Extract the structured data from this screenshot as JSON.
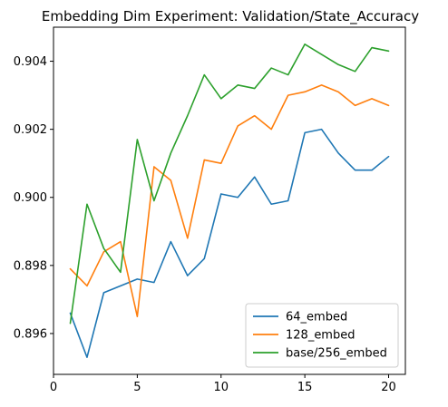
{
  "chart_data": {
    "type": "line",
    "title": "Embedding Dim Experiment: Validation/State_Accuracy",
    "xlabel": "",
    "ylabel": "",
    "xlim": [
      0,
      21
    ],
    "ylim": [
      0.8948,
      0.905
    ],
    "x_ticks": [
      0,
      5,
      10,
      15,
      20
    ],
    "x_tick_labels": [
      "0",
      "5",
      "10",
      "15",
      "20"
    ],
    "y_ticks": [
      0.896,
      0.898,
      0.9,
      0.902,
      0.904
    ],
    "y_tick_labels": [
      "0.896",
      "0.898",
      "0.900",
      "0.902",
      "0.904"
    ],
    "grid": false,
    "legend_position": "bottom-right",
    "x": [
      1,
      2,
      3,
      4,
      5,
      6,
      7,
      8,
      9,
      10,
      11,
      12,
      13,
      14,
      15,
      16,
      17,
      18,
      19,
      20
    ],
    "series": [
      {
        "name": "64_embed",
        "color": "#1f77b4",
        "values": [
          0.8966,
          0.8953,
          0.8972,
          0.8974,
          0.8976,
          0.8975,
          0.8987,
          0.8977,
          0.8982,
          0.9001,
          0.9,
          0.9006,
          0.8998,
          0.8999,
          0.9019,
          0.902,
          0.9013,
          0.9008,
          0.9008,
          0.9012
        ]
      },
      {
        "name": "128_embed",
        "color": "#ff7f0e",
        "values": [
          0.8979,
          0.8974,
          0.8984,
          0.8987,
          0.8965,
          0.9009,
          0.9005,
          0.8988,
          0.9011,
          0.901,
          0.9021,
          0.9024,
          0.902,
          0.903,
          0.9031,
          0.9033,
          0.9031,
          0.9027,
          0.9029,
          0.9027
        ]
      },
      {
        "name": "base/256_embed",
        "color": "#2ca02c",
        "values": [
          0.8963,
          0.8998,
          0.8985,
          0.8978,
          0.9017,
          0.8999,
          0.9013,
          0.9024,
          0.9036,
          0.9029,
          0.9033,
          0.9032,
          0.9038,
          0.9036,
          0.9045,
          0.9042,
          0.9039,
          0.9037,
          0.9044,
          0.9043
        ]
      }
    ]
  }
}
